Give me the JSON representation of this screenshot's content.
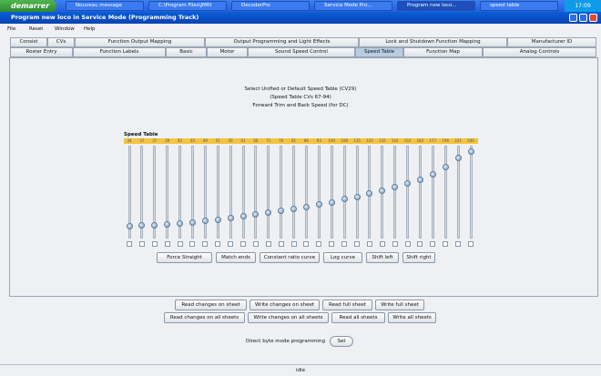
{
  "taskbar": {
    "start": "demarrer",
    "tasks": [
      "Nouveau message",
      "C:\\Program Files\\JMRI",
      "DecoderPro",
      "Service Mode Pro...",
      "Program new loco...",
      "speed table"
    ],
    "clock": "17:09"
  },
  "window": {
    "title": "Program new loco in Service Mode (Programming Track)"
  },
  "menu": [
    "File",
    "Reset",
    "Window",
    "Help"
  ],
  "tabs": {
    "row1": [
      "Consist",
      "CVs",
      "Function Output Mapping",
      "Output Programming and Light Effects",
      "Lock and Shutdown Function Mapping",
      "Manufacturer ID"
    ],
    "row2": [
      "Roster Entry",
      "Function Labels",
      "Basic",
      "Motor",
      "Sound Speed Control",
      "Speed Table",
      "Function Map",
      "Analog Controls"
    ],
    "selected": "Speed Table"
  },
  "panel": {
    "lines": [
      "Select Unified or Default Speed Table (CV29)",
      "(Speed Table CVs 67-94)",
      "Forward Trim and Back Speed (for DC)"
    ],
    "speed_table": {
      "label": "Speed Table",
      "max": 255,
      "values": [
        34,
        37,
        37,
        39,
        42,
        44,
        49,
        51,
        56,
        61,
        66,
        71,
        76,
        81,
        86,
        93,
        100,
        108,
        115,
        123,
        132,
        142,
        152,
        162,
        177,
        196,
        221,
        240
      ]
    },
    "curve_buttons": [
      "Force Straight",
      "Match ends",
      "Constant ratio curve",
      "Log curve",
      "Shift left",
      "Shift right"
    ]
  },
  "buttons": {
    "row1": [
      "Read changes on sheet",
      "Write changes on sheet",
      "Read full sheet",
      "Write full sheet"
    ],
    "row2": [
      "Read changes on all sheets",
      "Write changes on all sheets",
      "Read all sheets",
      "Write all sheets"
    ]
  },
  "mode": {
    "label": "Direct byte mode programming",
    "button": "Set"
  },
  "status": "idle"
}
